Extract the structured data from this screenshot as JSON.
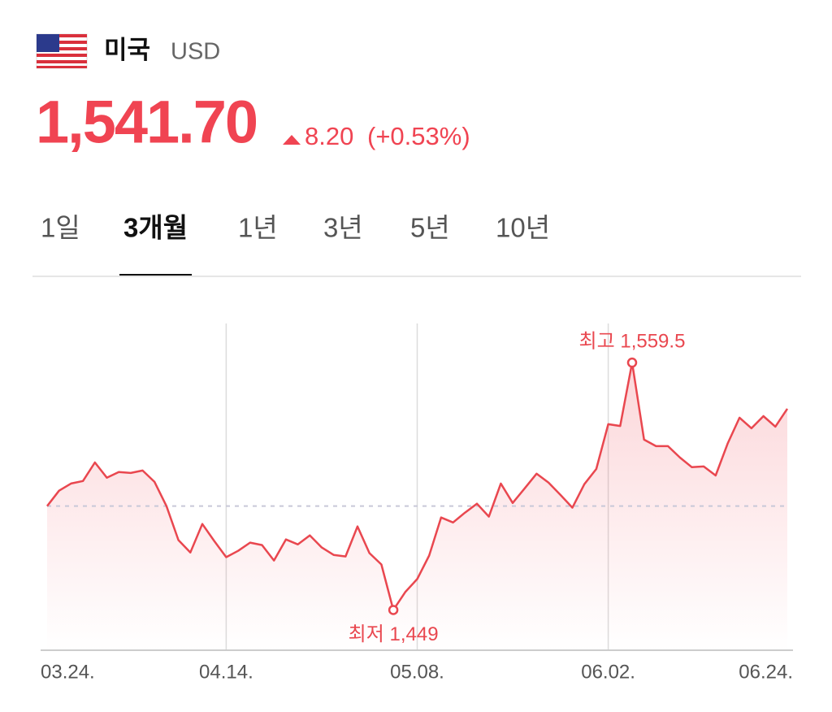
{
  "header": {
    "country": "미국",
    "code": "USD",
    "price": "1,541.70",
    "change": "8.20",
    "change_percent": "(+0.53%)"
  },
  "tabs": {
    "items": [
      "1일",
      "3개월",
      "1년",
      "3년",
      "5년",
      "10년"
    ],
    "selected": 1
  },
  "chart_data": {
    "type": "line",
    "categories": [
      "03.24.",
      null,
      null,
      null,
      null,
      null,
      null,
      null,
      null,
      null,
      null,
      null,
      null,
      null,
      null,
      "04.14.",
      null,
      null,
      null,
      null,
      null,
      null,
      null,
      null,
      null,
      null,
      null,
      null,
      null,
      null,
      null,
      "05.08.",
      null,
      null,
      null,
      null,
      null,
      null,
      null,
      null,
      null,
      null,
      null,
      null,
      null,
      null,
      null,
      "06.02.",
      null,
      null,
      null,
      null,
      null,
      null,
      null,
      null,
      null,
      null,
      null,
      null,
      null,
      null,
      "06.24."
    ],
    "series": [
      {
        "color": "#e9474f",
        "values": [
          1495.4,
          1502.3,
          1505.5,
          1506.6,
          1514.9,
          1508.1,
          1510.6,
          1510.2,
          1511.3,
          1506.2,
          1495.4,
          1480.2,
          1474.7,
          1487.4,
          1479.8,
          1472.6,
          1475.4,
          1479.1,
          1478.0,
          1471.1,
          1480.5,
          1478.3,
          1482.3,
          1476.9,
          1473.6,
          1472.9,
          1486.3,
          1474.4,
          1469.3,
          1449,
          1457.0,
          1462.8,
          1473.3,
          1490.3,
          1488.1,
          1492.5,
          1496.5,
          1490.7,
          1505.5,
          1496.8,
          1503.3,
          1509.9,
          1505.9,
          1500.4,
          1494.7,
          1505.2,
          1512.0,
          1532.0,
          1531.2,
          1559.5,
          1525.1,
          1522.2,
          1522.2,
          1517.1,
          1512.8,
          1513.1,
          1509.1,
          1523.3,
          1534.9,
          1530.2,
          1535.6,
          1530.9,
          1538.9
        ],
        "value_labels": [
          null,
          null,
          null,
          null,
          null,
          null,
          null,
          null,
          null,
          null,
          null,
          null,
          null,
          null,
          null,
          null,
          null,
          null,
          null,
          null,
          null,
          null,
          null,
          null,
          null,
          null,
          null,
          null,
          null,
          "최저 1,449",
          null,
          null,
          null,
          null,
          null,
          null,
          null,
          null,
          null,
          null,
          null,
          null,
          null,
          null,
          null,
          null,
          null,
          null,
          null,
          "최고 1,559.5",
          null,
          null,
          null,
          null,
          null,
          null,
          null,
          null,
          null,
          null,
          null,
          null,
          null
        ]
      }
    ],
    "ylim": [
      1431,
      1577
    ],
    "reference": 1495.4,
    "xgrid": true
  }
}
